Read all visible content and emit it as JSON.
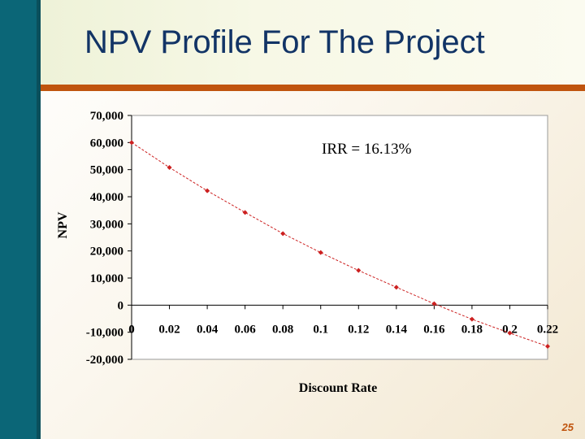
{
  "slide": {
    "title": "NPV Profile For The Project",
    "page_number": "25"
  },
  "colors": {
    "sidebar": "#0b6677",
    "title_text": "#123466",
    "rule": "#c0540e",
    "series": "#cc2020"
  },
  "chart_data": {
    "type": "line",
    "title": "",
    "xlabel": "Discount Rate",
    "ylabel": "NPV",
    "annotation": "IRR = 16.13%",
    "xlim": [
      0,
      0.22
    ],
    "ylim": [
      -20000,
      70000
    ],
    "x_ticks": [
      "0",
      "0.02",
      "0.04",
      "0.06",
      "0.08",
      "0.1",
      "0.12",
      "0.14",
      "0.16",
      "0.18",
      "0.2",
      "0.22"
    ],
    "y_ticks": [
      "70,000",
      "60,000",
      "50,000",
      "40,000",
      "30,000",
      "20,000",
      "10,000",
      "0",
      "-10,000",
      "-20,000"
    ],
    "series": [
      {
        "name": "NPV",
        "x": [
          0,
          0.02,
          0.04,
          0.06,
          0.08,
          0.1,
          0.12,
          0.14,
          0.16,
          0.18,
          0.2,
          0.22
        ],
        "values": [
          60000,
          50800,
          42200,
          34200,
          26400,
          19400,
          12800,
          6600,
          500,
          -5200,
          -10300,
          -15200
        ]
      }
    ]
  }
}
